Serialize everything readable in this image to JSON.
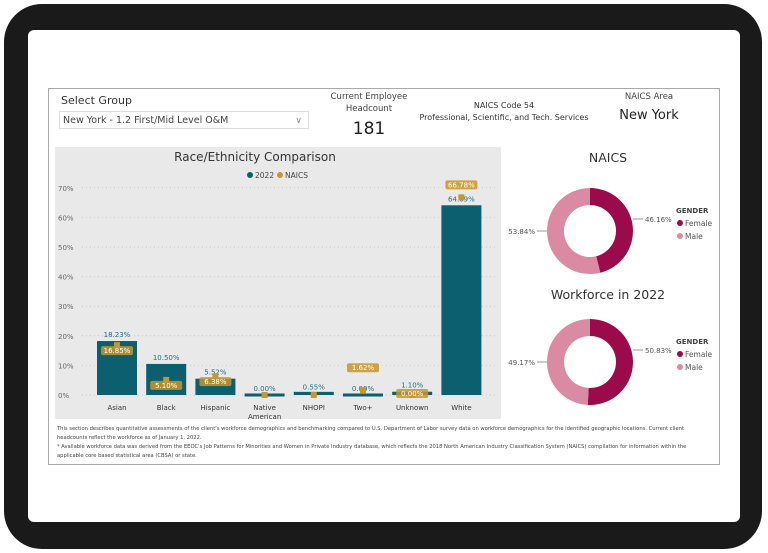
{
  "header": {
    "select_group_label": "Select Group",
    "select_group_value": "New York - 1.2 First/Mid Level O&M",
    "headcount_label_1": "Current Employee",
    "headcount_label_2": "Headcount",
    "headcount_value": "181",
    "naics_code": "NAICS Code 54",
    "naics_desc": "Professional, Scientific, and Tech. Services",
    "naics_area_label": "NAICS Area",
    "naics_area_value": "New York"
  },
  "chart_data": [
    {
      "type": "bar",
      "title": "Race/Ethnicity Comparison",
      "categories": [
        "Asian",
        "Black",
        "Hispanic",
        "Native American",
        "NHOPI",
        "Two+",
        "Unknown",
        "White"
      ],
      "series": [
        {
          "name": "2022",
          "color": "#0b5f6f",
          "values": [
            18.23,
            10.5,
            5.52,
            0.0,
            0.55,
            0.0,
            1.1,
            64.09
          ],
          "labels": [
            "18.23%",
            "10.50%",
            "5.52%",
            "0.00%",
            "0.55%",
            "0.00%",
            "1.10%",
            "64.09%"
          ]
        },
        {
          "name": "NAICS",
          "color": "#c8962a",
          "values": [
            16.85,
            5.1,
            6.38,
            0.0,
            0.0,
            1.62,
            0.0,
            66.78
          ],
          "labels": [
            "16.85%",
            "5.10%",
            "6.38%",
            "",
            "",
            "1.62%",
            "0.00%",
            "66.78%"
          ]
        }
      ],
      "yticks": [
        "0%",
        "10%",
        "20%",
        "30%",
        "40%",
        "50%",
        "60%",
        "70%"
      ],
      "ylim": [
        0,
        70
      ],
      "legend": "top"
    },
    {
      "type": "pie",
      "title": "NAICS",
      "legend_title": "GENDER",
      "categories": [
        "Female",
        "Male"
      ],
      "values": [
        46.16,
        53.84
      ],
      "labels": [
        "46.16%",
        "53.84%"
      ],
      "colors": [
        "#9b0a4a",
        "#db8aa3"
      ]
    },
    {
      "type": "pie",
      "title": "Workforce in 2022",
      "legend_title": "GENDER",
      "categories": [
        "Female",
        "Male"
      ],
      "values": [
        50.83,
        49.17
      ],
      "labels": [
        "50.83%",
        "49.17%"
      ],
      "colors": [
        "#9b0a4a",
        "#db8aa3"
      ]
    }
  ],
  "footer": {
    "line1": "This section describes quantitative assessments of the client's workforce demographics and benchmarking compared to U.S. Department of Labor survey data on workforce demographics for the identified geographic locations. Current client headcounts reflect the workforce as of January 1, 2022.",
    "line2": "* Available workforce data was derived from the EEOC's Job Patterns for Minorities and Women in Private Industry database, which reflects the 2018 North American Industry Classification System (NAICS) compilation for information within the applicable core based statistical area (CBSA) or state."
  }
}
